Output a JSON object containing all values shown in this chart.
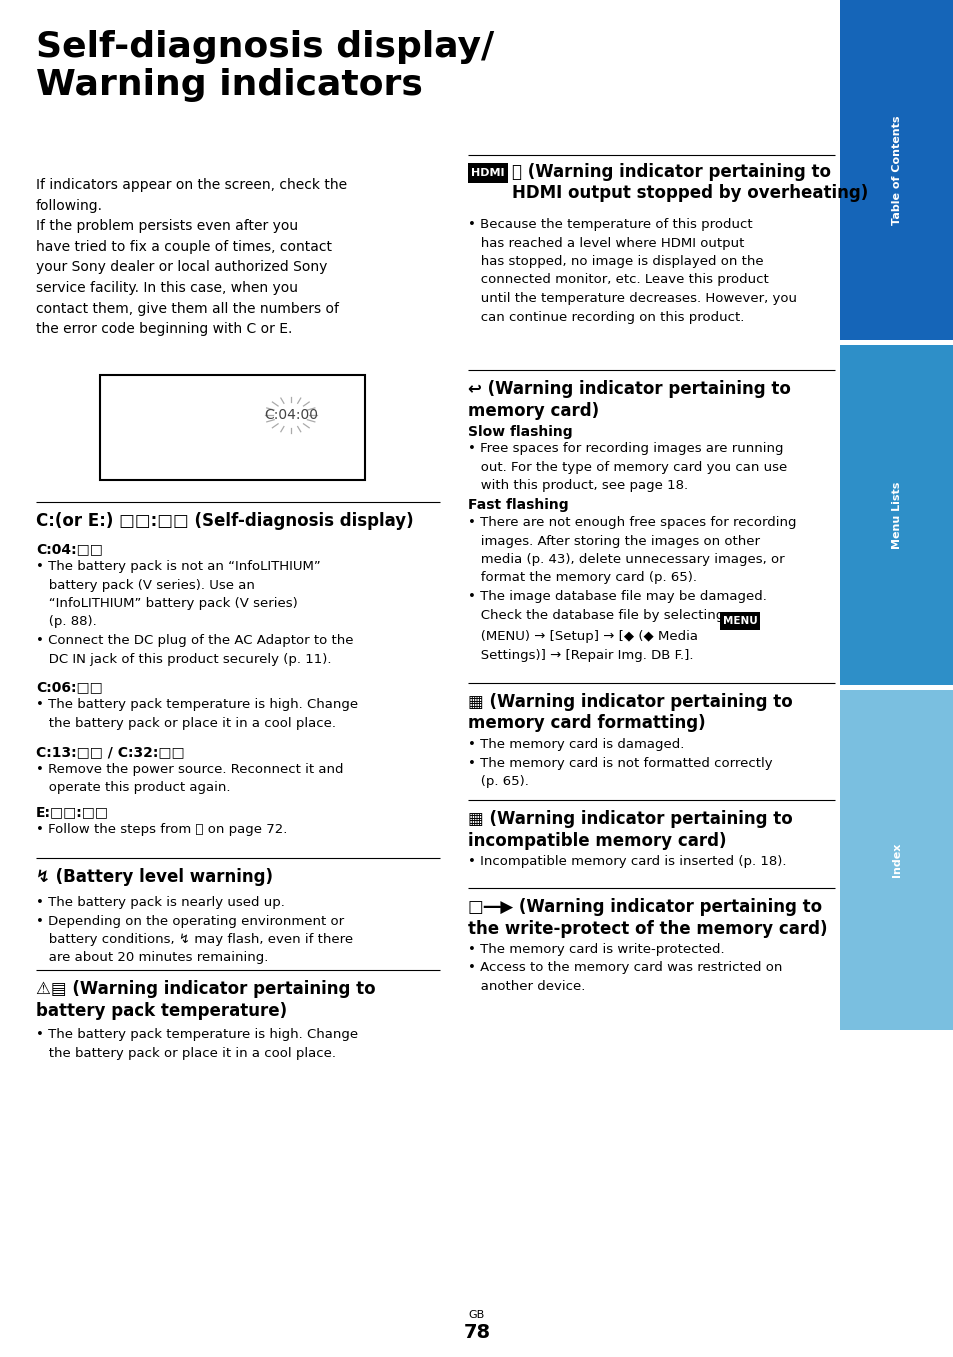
{
  "bg_color": "#ffffff",
  "sidebar_colors": [
    "#1565b8",
    "#2e8fc8",
    "#7abfe0"
  ],
  "sidebar_labels": [
    "Table of\nContents",
    "Menu Lists",
    "Index"
  ],
  "page_number": "78",
  "title": "Self-diagnosis display/\nWarning indicators"
}
